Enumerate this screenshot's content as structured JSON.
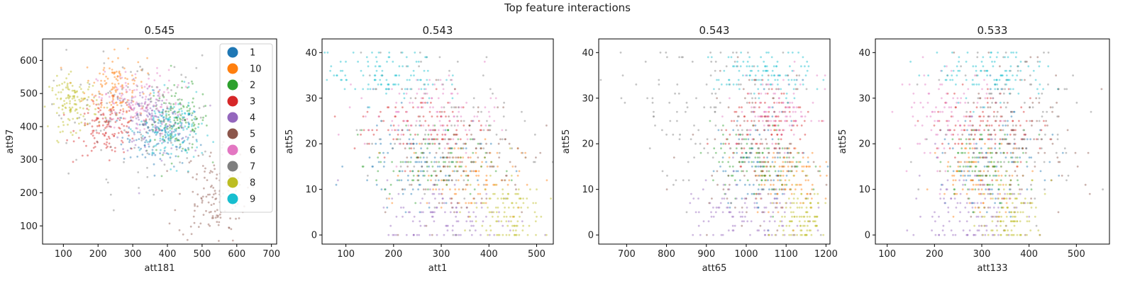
{
  "figure_title": "Top feature interactions",
  "colors": {
    "1": "#1f77b4",
    "10": "#ff7f0e",
    "2": "#2ca02c",
    "3": "#d62728",
    "4": "#9467bd",
    "5": "#8c564b",
    "6": "#e377c2",
    "7": "#7f7f7f",
    "8": "#bcbd22",
    "9": "#17becf"
  },
  "legend": [
    "1",
    "10",
    "2",
    "3",
    "4",
    "5",
    "6",
    "7",
    "8",
    "9"
  ],
  "chart_data": [
    {
      "type": "scatter",
      "title": "0.545",
      "xlabel": "att181",
      "ylabel": "att97",
      "xlim": [
        40,
        715
      ],
      "ylim": [
        45,
        665
      ],
      "xticks": [
        100,
        200,
        300,
        400,
        500,
        600,
        700
      ],
      "yticks": [
        100,
        200,
        300,
        400,
        500,
        600
      ],
      "legend_position": "upper right",
      "clusters": [
        {
          "class": "1",
          "cx": 380,
          "cy": 370,
          "sx": 55,
          "sy": 45
        },
        {
          "class": "10",
          "cx": 250,
          "cy": 520,
          "sx": 45,
          "sy": 50
        },
        {
          "class": "2",
          "cx": 430,
          "cy": 420,
          "sx": 45,
          "sy": 50
        },
        {
          "class": "3",
          "cx": 230,
          "cy": 395,
          "sx": 45,
          "sy": 40
        },
        {
          "class": "4",
          "cx": 350,
          "cy": 420,
          "sx": 55,
          "sy": 55
        },
        {
          "class": "5",
          "cx": 530,
          "cy": 190,
          "sx": 50,
          "sy": 70
        },
        {
          "class": "6",
          "cx": 320,
          "cy": 470,
          "sx": 60,
          "sy": 50
        },
        {
          "class": "7",
          "cx": 300,
          "cy": 430,
          "sx": 120,
          "sy": 90
        },
        {
          "class": "8",
          "cx": 130,
          "cy": 470,
          "sx": 35,
          "sy": 40
        },
        {
          "class": "9",
          "cx": 410,
          "cy": 390,
          "sx": 45,
          "sy": 50
        }
      ]
    },
    {
      "type": "scatter",
      "title": "0.543",
      "xlabel": "att1",
      "ylabel": "att55",
      "xlim": [
        50,
        535
      ],
      "ylim": [
        -2,
        43
      ],
      "xticks": [
        100,
        200,
        300,
        400,
        500
      ],
      "yticks": [
        0,
        10,
        20,
        30,
        40
      ],
      "clusters": [
        {
          "class": "1",
          "cx": 250,
          "cy": 16,
          "sx": 70,
          "sy": 5
        },
        {
          "class": "10",
          "cx": 350,
          "cy": 13,
          "sx": 60,
          "sy": 4
        },
        {
          "class": "2",
          "cx": 280,
          "cy": 16,
          "sx": 60,
          "sy": 4
        },
        {
          "class": "3",
          "cx": 260,
          "cy": 24,
          "sx": 70,
          "sy": 4
        },
        {
          "class": "4",
          "cx": 320,
          "cy": 4,
          "sx": 70,
          "sy": 4
        },
        {
          "class": "5",
          "cx": 330,
          "cy": 17,
          "sx": 80,
          "sy": 7
        },
        {
          "class": "6",
          "cx": 280,
          "cy": 27,
          "sx": 70,
          "sy": 4
        },
        {
          "class": "7",
          "cx": 310,
          "cy": 22,
          "sx": 90,
          "sy": 10
        },
        {
          "class": "8",
          "cx": 430,
          "cy": 5,
          "sx": 40,
          "sy": 4
        },
        {
          "class": "9",
          "cx": 180,
          "cy": 35,
          "sx": 60,
          "sy": 3
        }
      ]
    },
    {
      "type": "scatter",
      "title": "0.543",
      "xlabel": "att65",
      "ylabel": "att55",
      "xlim": [
        630,
        1210
      ],
      "ylim": [
        -2,
        43
      ],
      "xticks": [
        700,
        800,
        900,
        1000,
        1100,
        1200
      ],
      "yticks": [
        0,
        10,
        20,
        30,
        40
      ],
      "clusters": [
        {
          "class": "1",
          "cx": 1050,
          "cy": 16,
          "sx": 60,
          "sy": 5
        },
        {
          "class": "10",
          "cx": 1090,
          "cy": 13,
          "sx": 45,
          "sy": 4
        },
        {
          "class": "2",
          "cx": 1030,
          "cy": 16,
          "sx": 60,
          "sy": 4
        },
        {
          "class": "3",
          "cx": 1060,
          "cy": 24,
          "sx": 55,
          "sy": 4
        },
        {
          "class": "4",
          "cx": 1000,
          "cy": 4,
          "sx": 80,
          "sy": 4
        },
        {
          "class": "5",
          "cx": 1020,
          "cy": 19,
          "sx": 80,
          "sy": 8
        },
        {
          "class": "6",
          "cx": 1080,
          "cy": 27,
          "sx": 50,
          "sy": 4
        },
        {
          "class": "7",
          "cx": 880,
          "cy": 27,
          "sx": 120,
          "sy": 9
        },
        {
          "class": "8",
          "cx": 1140,
          "cy": 4,
          "sx": 30,
          "sy": 4
        },
        {
          "class": "9",
          "cx": 1040,
          "cy": 35,
          "sx": 60,
          "sy": 3
        }
      ]
    },
    {
      "type": "scatter",
      "title": "0.533",
      "xlabel": "att133",
      "ylabel": "att55",
      "xlim": [
        75,
        570
      ],
      "ylim": [
        -2,
        43
      ],
      "xticks": [
        100,
        200,
        300,
        400,
        500
      ],
      "yticks": [
        0,
        10,
        20,
        30,
        40
      ],
      "clusters": [
        {
          "class": "1",
          "cx": 330,
          "cy": 16,
          "sx": 55,
          "sy": 5
        },
        {
          "class": "10",
          "cx": 300,
          "cy": 13,
          "sx": 45,
          "sy": 4
        },
        {
          "class": "2",
          "cx": 310,
          "cy": 16,
          "sx": 45,
          "sy": 4
        },
        {
          "class": "3",
          "cx": 310,
          "cy": 24,
          "sx": 60,
          "sy": 4
        },
        {
          "class": "4",
          "cx": 270,
          "cy": 5,
          "sx": 55,
          "sy": 5
        },
        {
          "class": "5",
          "cx": 360,
          "cy": 20,
          "sx": 80,
          "sy": 9
        },
        {
          "class": "6",
          "cx": 230,
          "cy": 26,
          "sx": 55,
          "sy": 5
        },
        {
          "class": "7",
          "cx": 380,
          "cy": 26,
          "sx": 90,
          "sy": 9
        },
        {
          "class": "8",
          "cx": 360,
          "cy": 5,
          "sx": 35,
          "sy": 4
        },
        {
          "class": "9",
          "cx": 330,
          "cy": 35,
          "sx": 60,
          "sy": 3
        }
      ]
    }
  ]
}
